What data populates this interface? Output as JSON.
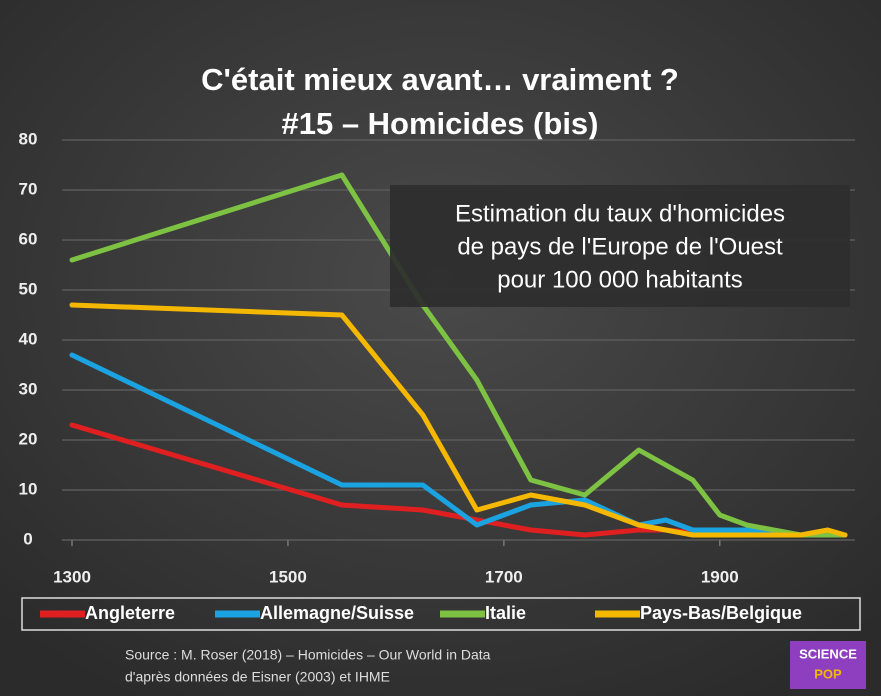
{
  "chart_data": {
    "type": "line",
    "title": [
      "C'était mieux avant… vraiment ?",
      "#15 – Homicides (bis)"
    ],
    "annotation": [
      "Estimation du taux d'homicides",
      "de pays de l'Europe de l'Ouest",
      "pour 100 000 habitants"
    ],
    "source": [
      "Source : M. Roser (2018) – Homicides – Our World in Data",
      "d'après données de Eisner (2003) et IHME"
    ],
    "logo": [
      "SCIENCE",
      "POP"
    ],
    "x": [
      1300,
      1550,
      1625,
      1675,
      1725,
      1775,
      1825,
      1850,
      1875,
      1900,
      1925,
      1975,
      2000,
      2016
    ],
    "series": [
      {
        "name": "Angleterre",
        "color": "#e02020",
        "values": [
          23,
          7,
          6,
          4,
          2,
          1,
          2,
          2,
          1.5,
          1.5,
          1,
          1,
          1,
          1
        ]
      },
      {
        "name": "Allemagne/Suisse",
        "color": "#1aa3e0",
        "values": [
          37,
          11,
          11,
          3,
          7,
          8,
          3,
          4,
          2,
          2,
          2,
          1,
          1,
          1
        ]
      },
      {
        "name": "Italie",
        "color": "#7dc242",
        "values": [
          56,
          73,
          47,
          32,
          12,
          9,
          18,
          15,
          12,
          5,
          3,
          1,
          1,
          1
        ]
      },
      {
        "name": "Pays-Bas/Belgique",
        "color": "#f5b800",
        "values": [
          47,
          45,
          25,
          6,
          9,
          7,
          3,
          2,
          1,
          1,
          1,
          1,
          2,
          1
        ]
      }
    ],
    "xlim": [
      1300,
      2016
    ],
    "xticks": [
      1300,
      1500,
      1700,
      1900
    ],
    "ylim": [
      0,
      80
    ],
    "yticks": [
      0,
      10,
      20,
      30,
      40,
      50,
      60,
      70,
      80
    ],
    "grid": true
  }
}
